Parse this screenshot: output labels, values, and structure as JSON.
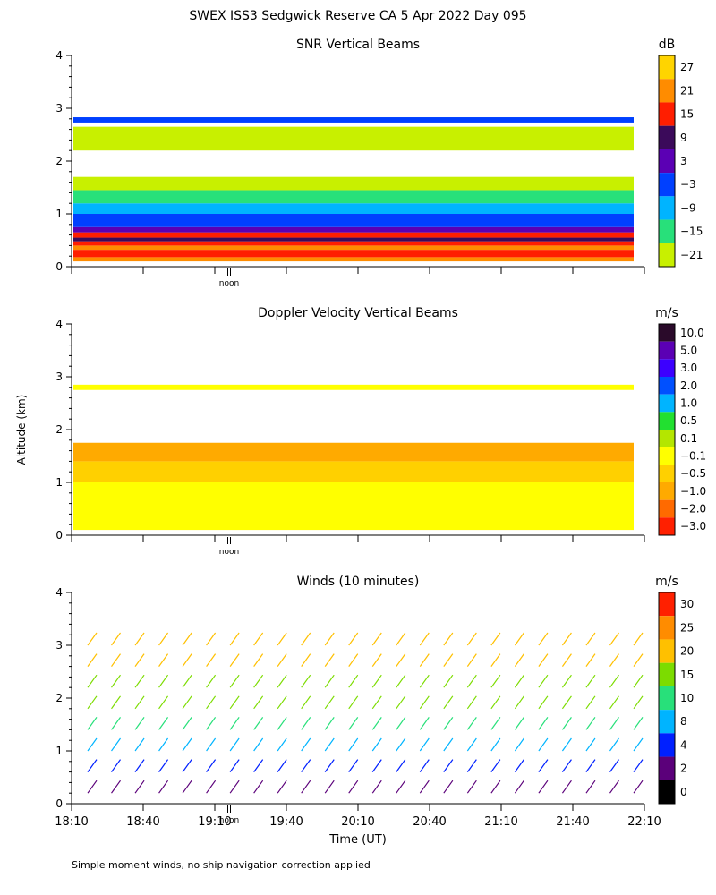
{
  "figure": {
    "title": "SWEX ISS3 Sedgwick Reserve CA   5 Apr 2022 Day 095",
    "ylabel": "Altitude (km)",
    "xlabel": "Time (UT)",
    "footnote": "Simple moment winds, no ship navigation correction applied",
    "noon_label": "noon"
  },
  "chart_data": [
    {
      "type": "heatmap",
      "title": "SNR Vertical Beams",
      "units": "dB",
      "ylim": [
        0,
        4
      ],
      "yticks": [
        "0",
        "1",
        "2",
        "3",
        "4"
      ],
      "colorbar": {
        "labels": [
          "27",
          "21",
          "15",
          "9",
          "3",
          "−3",
          "−9",
          "−15",
          "−21"
        ],
        "colors": [
          "#ffd400",
          "#ff8c00",
          "#ff1e00",
          "#3b0a5a",
          "#5b00b4",
          "#0040ff",
          "#00b4ff",
          "#28e07a",
          "#c8f000"
        ]
      },
      "layers": [
        {
          "y0": 0.1,
          "y1": 0.18,
          "color": "#ff8c00"
        },
        {
          "y0": 0.18,
          "y1": 0.32,
          "color": "#ff1e00"
        },
        {
          "y0": 0.32,
          "y1": 0.4,
          "color": "#ff8c00"
        },
        {
          "y0": 0.4,
          "y1": 0.48,
          "color": "#ff1e00"
        },
        {
          "y0": 0.48,
          "y1": 0.55,
          "color": "#3b0a5a"
        },
        {
          "y0": 0.55,
          "y1": 0.65,
          "color": "#ff1e00"
        },
        {
          "y0": 0.65,
          "y1": 0.75,
          "color": "#5b00b4"
        },
        {
          "y0": 0.75,
          "y1": 1.0,
          "color": "#0040ff"
        },
        {
          "y0": 1.0,
          "y1": 1.2,
          "color": "#00b4ff"
        },
        {
          "y0": 1.2,
          "y1": 1.45,
          "color": "#28e07a"
        },
        {
          "y0": 1.45,
          "y1": 1.7,
          "color": "#c8f000"
        },
        {
          "y0": 2.2,
          "y1": 2.65,
          "color": "#c8f000"
        },
        {
          "y0": 2.73,
          "y1": 2.83,
          "color": "#0040ff"
        }
      ]
    },
    {
      "type": "heatmap",
      "title": "Doppler Velocity Vertical Beams",
      "units": "m/s",
      "ylim": [
        0,
        4
      ],
      "yticks": [
        "0",
        "1",
        "2",
        "3",
        "4"
      ],
      "colorbar": {
        "labels": [
          "10.0",
          "5.0",
          "3.0",
          "2.0",
          "1.0",
          "0.5",
          "0.1",
          "−0.1",
          "−0.5",
          "−1.0",
          "−2.0",
          "−3.0"
        ],
        "colors": [
          "#2a0a2a",
          "#5b00b4",
          "#3c00ff",
          "#0050ff",
          "#00b4ff",
          "#22e030",
          "#b4e600",
          "#ffff00",
          "#ffd000",
          "#ffaa00",
          "#ff6a00",
          "#ff2000"
        ]
      },
      "layers": [
        {
          "y0": 0.1,
          "y1": 1.0,
          "color": "#ffff00"
        },
        {
          "y0": 1.0,
          "y1": 1.4,
          "color": "#ffd000"
        },
        {
          "y0": 1.4,
          "y1": 1.75,
          "color": "#ffaa00"
        },
        {
          "y0": 2.75,
          "y1": 2.85,
          "color": "#ffff00"
        }
      ]
    },
    {
      "type": "wind-barbs",
      "title": "Winds (10 minutes)",
      "units": "m/s",
      "ylim": [
        0,
        4
      ],
      "yticks": [
        "0",
        "1",
        "2",
        "3",
        "4"
      ],
      "xticks": [
        "18:10",
        "18:40",
        "19:10",
        "19:40",
        "20:10",
        "20:40",
        "21:10",
        "21:40",
        "22:10"
      ],
      "interval_min": 10,
      "colorbar": {
        "labels": [
          "30",
          "25",
          "20",
          "15",
          "10",
          "8",
          "4",
          "2",
          "0"
        ],
        "colors": [
          "#ff2000",
          "#ff8c00",
          "#ffc000",
          "#7cdc00",
          "#28e07a",
          "#00b4ff",
          "#0020ff",
          "#5b007a",
          "#000000"
        ]
      },
      "profile": [
        {
          "alt": 0.2,
          "speed": 3
        },
        {
          "alt": 0.6,
          "speed": 4
        },
        {
          "alt": 1.0,
          "speed": 8
        },
        {
          "alt": 1.4,
          "speed": 12
        },
        {
          "alt": 1.8,
          "speed": 15
        },
        {
          "alt": 2.2,
          "speed": 18
        },
        {
          "alt": 2.6,
          "speed": 20
        },
        {
          "alt": 3.0,
          "speed": 22
        }
      ]
    }
  ]
}
